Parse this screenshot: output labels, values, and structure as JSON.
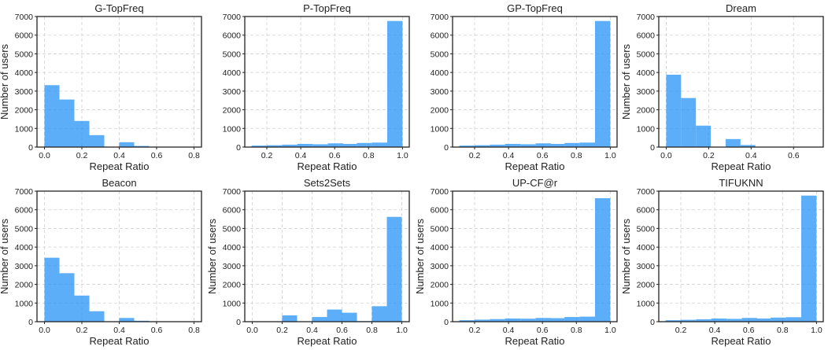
{
  "figure": {
    "bar_color": "#1f8ff7",
    "bar_opacity": 0.72
  },
  "chart_data": [
    {
      "type": "bar",
      "title": "G-TopFreq",
      "xlabel": "Repeat Ratio",
      "ylabel": "Number of users",
      "xlim": [
        -0.04,
        0.84
      ],
      "ylim": [
        0,
        7000
      ],
      "xticks": [
        0.0,
        0.2,
        0.4,
        0.6,
        0.8
      ],
      "xtick_labels": [
        "0.0",
        "0.2",
        "0.4",
        "0.6",
        "0.8"
      ],
      "yticks": [
        0,
        1000,
        2000,
        3000,
        4000,
        5000,
        6000,
        7000
      ],
      "ytick_labels": [
        "0",
        "1000",
        "2000",
        "3000",
        "4000",
        "5000",
        "6000",
        "7000"
      ],
      "bins": [
        [
          0.0,
          0.08,
          3320
        ],
        [
          0.08,
          0.16,
          2550
        ],
        [
          0.16,
          0.24,
          1400
        ],
        [
          0.24,
          0.32,
          640
        ],
        [
          0.32,
          0.4,
          0
        ],
        [
          0.4,
          0.48,
          260
        ],
        [
          0.48,
          0.56,
          60
        ],
        [
          0.56,
          0.64,
          15
        ],
        [
          0.64,
          0.72,
          5
        ],
        [
          0.72,
          0.8,
          3
        ]
      ]
    },
    {
      "type": "bar",
      "title": "P-TopFreq",
      "xlabel": "Repeat Ratio",
      "ylabel": "",
      "xlim": [
        0.07,
        1.04
      ],
      "ylim": [
        0,
        7000
      ],
      "xticks": [
        0.2,
        0.4,
        0.6,
        0.8,
        1.0
      ],
      "xtick_labels": [
        "0.2",
        "0.4",
        "0.6",
        "0.8",
        "1.0"
      ],
      "yticks": [
        0,
        1000,
        2000,
        3000,
        4000,
        5000,
        6000,
        7000
      ],
      "ytick_labels": [
        "0",
        "1000",
        "2000",
        "3000",
        "4000",
        "5000",
        "6000",
        "7000"
      ],
      "bins": [
        [
          0.11,
          0.2,
          80
        ],
        [
          0.2,
          0.29,
          100
        ],
        [
          0.29,
          0.38,
          130
        ],
        [
          0.38,
          0.47,
          170
        ],
        [
          0.47,
          0.56,
          150
        ],
        [
          0.56,
          0.65,
          200
        ],
        [
          0.65,
          0.73,
          170
        ],
        [
          0.73,
          0.82,
          220
        ],
        [
          0.82,
          0.91,
          240
        ],
        [
          0.91,
          1.0,
          6760
        ]
      ]
    },
    {
      "type": "bar",
      "title": "GP-TopFreq",
      "xlabel": "Repeat Ratio",
      "ylabel": "",
      "xlim": [
        0.07,
        1.04
      ],
      "ylim": [
        0,
        7000
      ],
      "xticks": [
        0.2,
        0.4,
        0.6,
        0.8,
        1.0
      ],
      "xtick_labels": [
        "0.2",
        "0.4",
        "0.6",
        "0.8",
        "1.0"
      ],
      "yticks": [
        0,
        1000,
        2000,
        3000,
        4000,
        5000,
        6000,
        7000
      ],
      "ytick_labels": [
        "0",
        "1000",
        "2000",
        "3000",
        "4000",
        "5000",
        "6000",
        "7000"
      ],
      "bins": [
        [
          0.11,
          0.2,
          80
        ],
        [
          0.2,
          0.29,
          100
        ],
        [
          0.29,
          0.38,
          130
        ],
        [
          0.38,
          0.47,
          170
        ],
        [
          0.47,
          0.56,
          150
        ],
        [
          0.56,
          0.65,
          200
        ],
        [
          0.65,
          0.73,
          170
        ],
        [
          0.73,
          0.82,
          220
        ],
        [
          0.82,
          0.91,
          240
        ],
        [
          0.91,
          1.0,
          6760
        ]
      ]
    },
    {
      "type": "bar",
      "title": "Dream",
      "xlabel": "Repeat Ratio",
      "ylabel": "Number of users",
      "xlim": [
        -0.035,
        0.74
      ],
      "ylim": [
        0,
        7000
      ],
      "xticks": [
        0.0,
        0.2,
        0.4,
        0.6
      ],
      "xtick_labels": [
        "0.0",
        "0.2",
        "0.4",
        "0.6"
      ],
      "yticks": [
        0,
        1000,
        2000,
        3000,
        4000,
        5000,
        6000,
        7000
      ],
      "ytick_labels": [
        "0",
        "1000",
        "2000",
        "3000",
        "4000",
        "5000",
        "6000",
        "7000"
      ],
      "bins": [
        [
          0.0,
          0.07,
          3880
        ],
        [
          0.07,
          0.14,
          2630
        ],
        [
          0.14,
          0.21,
          1150
        ],
        [
          0.21,
          0.28,
          0
        ],
        [
          0.28,
          0.35,
          430
        ],
        [
          0.35,
          0.42,
          110
        ],
        [
          0.42,
          0.49,
          20
        ],
        [
          0.49,
          0.56,
          10
        ],
        [
          0.56,
          0.63,
          5
        ],
        [
          0.63,
          0.7,
          3
        ]
      ]
    },
    {
      "type": "bar",
      "title": "Beacon",
      "xlabel": "Repeat Ratio",
      "ylabel": "Number of users",
      "xlim": [
        -0.04,
        0.84
      ],
      "ylim": [
        0,
        7000
      ],
      "xticks": [
        0.0,
        0.2,
        0.4,
        0.6,
        0.8
      ],
      "xtick_labels": [
        "0.0",
        "0.2",
        "0.4",
        "0.6",
        "0.8"
      ],
      "yticks": [
        0,
        1000,
        2000,
        3000,
        4000,
        5000,
        6000,
        7000
      ],
      "ytick_labels": [
        "0",
        "1000",
        "2000",
        "3000",
        "4000",
        "5000",
        "6000",
        "7000"
      ],
      "bins": [
        [
          0.0,
          0.08,
          3430
        ],
        [
          0.08,
          0.16,
          2600
        ],
        [
          0.16,
          0.24,
          1400
        ],
        [
          0.24,
          0.32,
          560
        ],
        [
          0.32,
          0.4,
          0
        ],
        [
          0.4,
          0.48,
          200
        ],
        [
          0.48,
          0.56,
          50
        ],
        [
          0.56,
          0.64,
          15
        ],
        [
          0.64,
          0.72,
          5
        ],
        [
          0.72,
          0.8,
          3
        ]
      ]
    },
    {
      "type": "bar",
      "title": "Sets2Sets",
      "xlabel": "Repeat Ratio",
      "ylabel": "Number of users",
      "xlim": [
        -0.05,
        1.05
      ],
      "ylim": [
        0,
        7000
      ],
      "xticks": [
        0.0,
        0.2,
        0.4,
        0.6,
        0.8,
        1.0
      ],
      "xtick_labels": [
        "0.0",
        "0.2",
        "0.4",
        "0.6",
        "0.8",
        "1.0"
      ],
      "yticks": [
        0,
        1000,
        2000,
        3000,
        4000,
        5000,
        6000,
        7000
      ],
      "ytick_labels": [
        "0",
        "1000",
        "2000",
        "3000",
        "4000",
        "5000",
        "6000",
        "7000"
      ],
      "bins": [
        [
          0.0,
          0.1,
          5
        ],
        [
          0.1,
          0.2,
          10
        ],
        [
          0.2,
          0.3,
          340
        ],
        [
          0.3,
          0.4,
          20
        ],
        [
          0.4,
          0.5,
          250
        ],
        [
          0.5,
          0.6,
          650
        ],
        [
          0.6,
          0.7,
          480
        ],
        [
          0.7,
          0.8,
          30
        ],
        [
          0.8,
          0.9,
          830
        ],
        [
          0.9,
          1.0,
          5620
        ]
      ]
    },
    {
      "type": "bar",
      "title": "UP-CF@r",
      "xlabel": "Repeat Ratio",
      "ylabel": "Number of users",
      "xlim": [
        0.07,
        1.04
      ],
      "ylim": [
        0,
        7000
      ],
      "xticks": [
        0.2,
        0.4,
        0.6,
        0.8,
        1.0
      ],
      "xtick_labels": [
        "0.2",
        "0.4",
        "0.6",
        "0.8",
        "1.0"
      ],
      "yticks": [
        0,
        1000,
        2000,
        3000,
        4000,
        5000,
        6000,
        7000
      ],
      "ytick_labels": [
        "0",
        "1000",
        "2000",
        "3000",
        "4000",
        "5000",
        "6000",
        "7000"
      ],
      "bins": [
        [
          0.11,
          0.2,
          80
        ],
        [
          0.2,
          0.29,
          110
        ],
        [
          0.29,
          0.38,
          140
        ],
        [
          0.38,
          0.47,
          170
        ],
        [
          0.47,
          0.56,
          160
        ],
        [
          0.56,
          0.65,
          200
        ],
        [
          0.65,
          0.73,
          190
        ],
        [
          0.73,
          0.82,
          250
        ],
        [
          0.82,
          0.91,
          270
        ],
        [
          0.91,
          1.0,
          6620
        ]
      ]
    },
    {
      "type": "bar",
      "title": "TIFUKNN",
      "xlabel": "Repeat Ratio",
      "ylabel": "Number of users",
      "xlim": [
        0.07,
        1.04
      ],
      "ylim": [
        0,
        7000
      ],
      "xticks": [
        0.2,
        0.4,
        0.6,
        0.8,
        1.0
      ],
      "xtick_labels": [
        "0.2",
        "0.4",
        "0.6",
        "0.8",
        "1.0"
      ],
      "yticks": [
        0,
        1000,
        2000,
        3000,
        4000,
        5000,
        6000,
        7000
      ],
      "ytick_labels": [
        "0",
        "1000",
        "2000",
        "3000",
        "4000",
        "5000",
        "6000",
        "7000"
      ],
      "bins": [
        [
          0.11,
          0.2,
          80
        ],
        [
          0.2,
          0.29,
          100
        ],
        [
          0.29,
          0.38,
          130
        ],
        [
          0.38,
          0.47,
          170
        ],
        [
          0.47,
          0.56,
          150
        ],
        [
          0.56,
          0.65,
          200
        ],
        [
          0.65,
          0.73,
          170
        ],
        [
          0.73,
          0.82,
          220
        ],
        [
          0.82,
          0.91,
          240
        ],
        [
          0.91,
          1.0,
          6760
        ]
      ]
    }
  ]
}
